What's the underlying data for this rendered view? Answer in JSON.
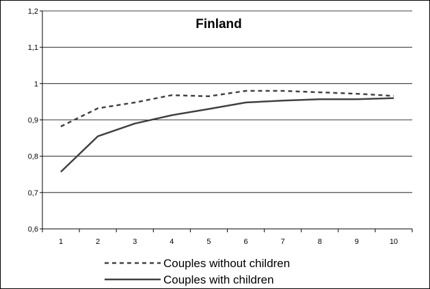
{
  "chart_data": {
    "type": "line",
    "title": "Finland",
    "xlabel": "",
    "ylabel": "",
    "x": [
      "1",
      "2",
      "3",
      "4",
      "5",
      "6",
      "7",
      "8",
      "9",
      "10"
    ],
    "ylim": [
      0.6,
      1.2
    ],
    "yticks": [
      "0,6",
      "0,7",
      "0,8",
      "0,9",
      "1",
      "1,1",
      "1,2"
    ],
    "grid": true,
    "legend_position": "bottom",
    "series": [
      {
        "name": "Couples without children",
        "style": "dashed",
        "color": "#404040",
        "values": [
          0.882,
          0.932,
          0.948,
          0.968,
          0.965,
          0.98,
          0.98,
          0.976,
          0.972,
          0.966
        ]
      },
      {
        "name": "Couples with children",
        "style": "solid",
        "color": "#404040",
        "values": [
          0.757,
          0.855,
          0.89,
          0.913,
          0.93,
          0.948,
          0.953,
          0.957,
          0.957,
          0.96
        ]
      }
    ]
  }
}
